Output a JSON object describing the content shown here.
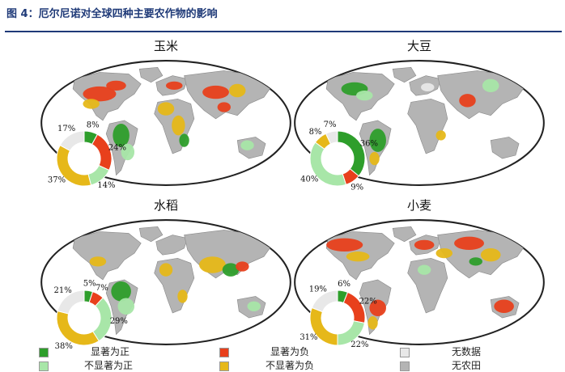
{
  "figure": {
    "title": "图 4：厄尔尼诺对全球四种主要农作物的影响"
  },
  "colors": {
    "sig_pos": "#2e9e2b",
    "nonsig_pos": "#a8e6a8",
    "sig_neg": "#e8401c",
    "nonsig_neg": "#e6b819",
    "no_data": "#e8e8e8",
    "no_crop": "#b4b4b4",
    "ocean": "#ffffff",
    "outline": "#222222"
  },
  "legend": [
    {
      "label": "显著为正",
      "color_key": "sig_pos"
    },
    {
      "label": "不显著为正",
      "color_key": "nonsig_pos"
    },
    {
      "label": "显著为负",
      "color_key": "sig_neg"
    },
    {
      "label": "不显著为负",
      "color_key": "nonsig_neg"
    },
    {
      "label": "无数据",
      "color_key": "no_data"
    },
    {
      "label": "无农田",
      "color_key": "no_crop"
    }
  ],
  "chart_data": [
    {
      "type": "pie",
      "title": "玉米",
      "slices": [
        {
          "category": "显著为正",
          "value": 8,
          "label": "8%"
        },
        {
          "category": "显著为负",
          "value": 24,
          "label": "24%"
        },
        {
          "category": "不显著为正",
          "value": 14,
          "label": "14%"
        },
        {
          "category": "不显著为负",
          "value": 37,
          "label": "37%"
        },
        {
          "category": "无数据",
          "value": 17,
          "label": "17%"
        }
      ]
    },
    {
      "type": "pie",
      "title": "大豆",
      "slices": [
        {
          "category": "显著为正",
          "value": 36,
          "label": "36%"
        },
        {
          "category": "显著为负",
          "value": 9,
          "label": "9%"
        },
        {
          "category": "不显著为正",
          "value": 40,
          "label": "40%"
        },
        {
          "category": "不显著为负",
          "value": 8,
          "label": "8%"
        },
        {
          "category": "无数据",
          "value": 7,
          "label": "7%"
        }
      ]
    },
    {
      "type": "pie",
      "title": "水稻",
      "slices": [
        {
          "category": "显著为正",
          "value": 5,
          "label": "5%"
        },
        {
          "category": "显著为负",
          "value": 7,
          "label": "7%"
        },
        {
          "category": "不显著为正",
          "value": 29,
          "label": "29%"
        },
        {
          "category": "不显著为负",
          "value": 38,
          "label": "38%"
        },
        {
          "category": "无数据",
          "value": 21,
          "label": "21%"
        }
      ]
    },
    {
      "type": "pie",
      "title": "小麦",
      "slices": [
        {
          "category": "显著为正",
          "value": 6,
          "label": "6%"
        },
        {
          "category": "显著为负",
          "value": 22,
          "label": "22%"
        },
        {
          "category": "不显著为正",
          "value": 22,
          "label": "22%"
        },
        {
          "category": "不显著为负",
          "value": 31,
          "label": "31%"
        },
        {
          "category": "无数据",
          "value": 19,
          "label": "19%"
        }
      ]
    }
  ]
}
